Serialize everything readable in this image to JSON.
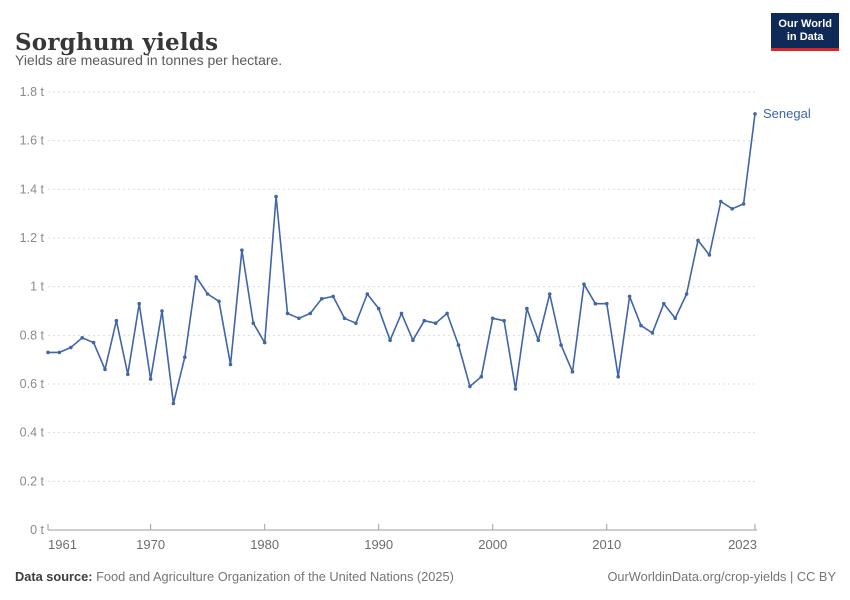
{
  "header": {
    "title": "Sorghum yields",
    "subtitle": "Yields are measured in tonnes per hectare.",
    "logo_line1": "Our World",
    "logo_line2": "in Data"
  },
  "footer": {
    "source_label": "Data source:",
    "source_text": " Food and Agriculture Organization of the United Nations (2025)",
    "attribution": "OurWorldinData.org/crop-yields | CC BY"
  },
  "colors": {
    "line": "#4065a8",
    "series_label": "#4065a8",
    "grid": "#dcdcdc",
    "axis": "#9e9e9e",
    "logo_bg": "#102a58",
    "logo_red": "#dc2328"
  },
  "chart_data": {
    "type": "line",
    "title": "Sorghum yields",
    "subtitle": "Yields are measured in tonnes per hectare.",
    "series_name": "Senegal",
    "unit": "tonnes per hectare",
    "xlim": [
      1961,
      2023
    ],
    "ylim": [
      0,
      1.8
    ],
    "grid": true,
    "legend_position": "end-of-line",
    "x_ticks": [
      1961,
      1970,
      1980,
      1990,
      2000,
      2010,
      2023
    ],
    "x_tick_labels": [
      "1961",
      "1970",
      "1980",
      "1990",
      "2000",
      "2010",
      "2023"
    ],
    "y_ticks": [
      0,
      0.2,
      0.4,
      0.6,
      0.8,
      1.0,
      1.2,
      1.4,
      1.6,
      1.8
    ],
    "y_tick_labels": [
      "0 t",
      "0.2 t",
      "0.4 t",
      "0.6 t",
      "0.8 t",
      "1 t",
      "1.2 t",
      "1.4 t",
      "1.6 t",
      "1.8 t"
    ],
    "x": [
      1961,
      1962,
      1963,
      1964,
      1965,
      1966,
      1967,
      1968,
      1969,
      1970,
      1971,
      1972,
      1973,
      1974,
      1975,
      1976,
      1977,
      1978,
      1979,
      1980,
      1981,
      1982,
      1983,
      1984,
      1985,
      1986,
      1987,
      1988,
      1989,
      1990,
      1991,
      1992,
      1993,
      1994,
      1995,
      1996,
      1997,
      1998,
      1999,
      2000,
      2001,
      2002,
      2003,
      2004,
      2005,
      2006,
      2007,
      2008,
      2009,
      2010,
      2011,
      2012,
      2013,
      2014,
      2015,
      2016,
      2017,
      2018,
      2019,
      2020,
      2021,
      2022,
      2023
    ],
    "values": [
      0.73,
      0.73,
      0.75,
      0.79,
      0.77,
      0.66,
      0.86,
      0.64,
      0.93,
      0.62,
      0.9,
      0.52,
      0.71,
      1.04,
      0.97,
      0.94,
      0.68,
      1.15,
      0.85,
      0.77,
      1.37,
      0.89,
      0.87,
      0.89,
      0.95,
      0.96,
      0.87,
      0.85,
      0.97,
      0.91,
      0.78,
      0.89,
      0.78,
      0.86,
      0.85,
      0.89,
      0.76,
      0.59,
      0.63,
      0.87,
      0.86,
      0.58,
      0.91,
      0.78,
      0.97,
      0.76,
      0.65,
      1.01,
      0.93,
      0.93,
      0.63,
      0.96,
      0.84,
      0.81,
      0.93,
      0.87,
      0.97,
      1.19,
      1.13,
      1.35,
      1.32,
      1.34,
      1.71
    ]
  }
}
